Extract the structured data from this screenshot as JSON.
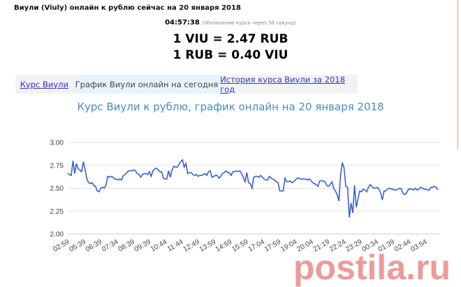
{
  "header": {
    "title": "Виули (Viuly) онлайн к рублю сейчас на 20 января 2018",
    "time": "04:57:38",
    "update_note": "(обновление курса через 56 секунд)",
    "rate1": "1 VIU = 2.47 RUB",
    "rate2": "1 RUB = 0.40 VIU"
  },
  "tabs": [
    {
      "label": "Курс Виули",
      "active": false
    },
    {
      "label": "График Виули онлайн на сегодня",
      "active": true
    },
    {
      "label": "История курса Виули за 2018 год",
      "active": false
    }
  ],
  "watermark": "postila.ru",
  "chart_data": {
    "type": "line",
    "title": "Курс Виули к рублю, график онлайн на 20 января 2018",
    "ylim": [
      2.0,
      3.0
    ],
    "yticks": [
      "3.00",
      "2.75",
      "2.50",
      "2.25",
      "2.00"
    ],
    "xticks": [
      "02:59",
      "05:39",
      "06:39",
      "07:34",
      "08:39",
      "09:39",
      "10:44",
      "11:44",
      "12:49",
      "13:59",
      "14:59",
      "15:59",
      "17:04",
      "17:59",
      "19:04",
      "20:04",
      "21:19",
      "22:24",
      "23:29",
      "00:34",
      "01:39",
      "02:44",
      "03:54"
    ],
    "grid": true,
    "color": "#3b5fce",
    "values": [
      2.66,
      2.65,
      2.64,
      2.8,
      2.66,
      2.77,
      2.71,
      2.7,
      2.68,
      2.79,
      2.7,
      2.6,
      2.56,
      2.55,
      2.56,
      2.53,
      2.52,
      2.47,
      2.46,
      2.5,
      2.51,
      2.5,
      2.53,
      2.63,
      2.62,
      2.63,
      2.62,
      2.6,
      2.6,
      2.59,
      2.6,
      2.59,
      2.64,
      2.65,
      2.67,
      2.69,
      2.69,
      2.69,
      2.7,
      2.69,
      2.66,
      2.65,
      2.62,
      2.65,
      2.66,
      2.66,
      2.65,
      2.68,
      2.63,
      2.69,
      2.71,
      2.72,
      2.7,
      2.68,
      2.68,
      2.61,
      2.6,
      2.6,
      2.69,
      2.62,
      2.7,
      2.74,
      2.73,
      2.73,
      2.76,
      2.79,
      2.81,
      2.73,
      2.77,
      2.66,
      2.67,
      2.67,
      2.65,
      2.64,
      2.65,
      2.63,
      2.64,
      2.64,
      2.65,
      2.66,
      2.64,
      2.68,
      2.69,
      2.62,
      2.63,
      2.64,
      2.64,
      2.61,
      2.63,
      2.66,
      2.67,
      2.69,
      2.67,
      2.67,
      2.64,
      2.68,
      2.68,
      2.69,
      2.68,
      2.69,
      2.66,
      2.62,
      2.57,
      2.67,
      2.56,
      2.55,
      2.5,
      2.62,
      2.63,
      2.63,
      2.62,
      2.64,
      2.62,
      2.6,
      2.59,
      2.59,
      2.63,
      2.61,
      2.6,
      2.59,
      2.57,
      2.56,
      2.47,
      2.47,
      2.47,
      2.61,
      2.57,
      2.57,
      2.58,
      2.56,
      2.57,
      2.59,
      2.61,
      2.61,
      2.6,
      2.6,
      2.6,
      2.6,
      2.59,
      2.6,
      2.58,
      2.56,
      2.55,
      2.54,
      2.52,
      2.58,
      2.58,
      2.58,
      2.57,
      2.53,
      2.52,
      2.54,
      2.57,
      2.5,
      2.47,
      2.43,
      2.36,
      2.65,
      2.78,
      2.72,
      2.52,
      2.51,
      2.18,
      2.34,
      2.23,
      2.53,
      2.29,
      2.38,
      2.47,
      2.46,
      2.49,
      2.48,
      2.46,
      2.51,
      2.54,
      2.52,
      2.5,
      2.5,
      2.51,
      2.49,
      2.45,
      2.37,
      2.47,
      2.47,
      2.49,
      2.5,
      2.49,
      2.49,
      2.48,
      2.48,
      2.49,
      2.5,
      2.49,
      2.44,
      2.43,
      2.45,
      2.49,
      2.49,
      2.49,
      2.48,
      2.5,
      2.48,
      2.49,
      2.51,
      2.5,
      2.49,
      2.49,
      2.48,
      2.48,
      2.51,
      2.51,
      2.52,
      2.51,
      2.48
    ]
  }
}
